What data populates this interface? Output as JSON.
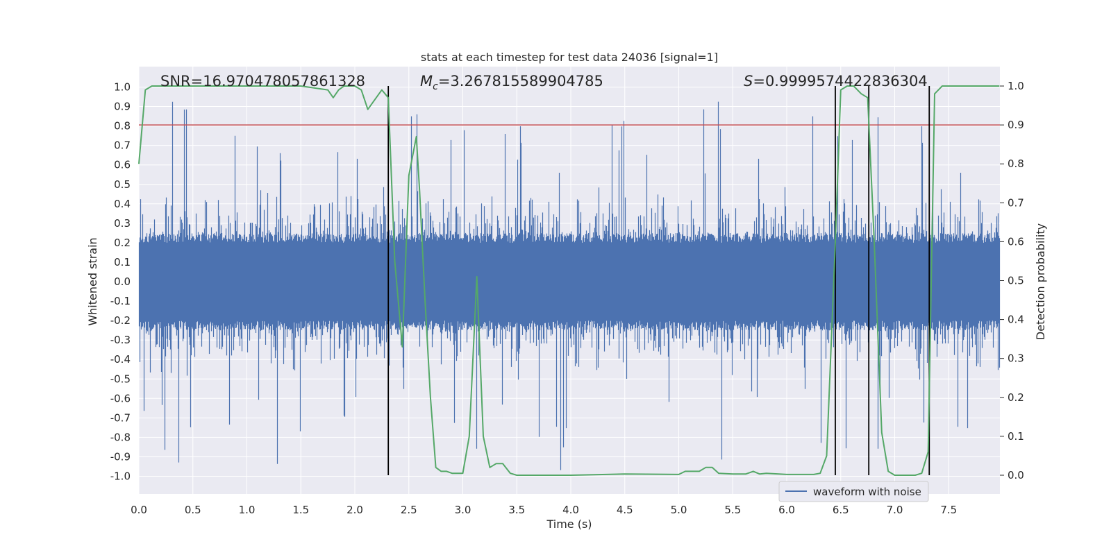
{
  "chart_data": {
    "type": "line",
    "title": "stats at each timestep for test data 24036 [signal=1]",
    "xlabel": "Time (s)",
    "ylabel": "Whitened strain",
    "y2label": "Detection probability",
    "xlim": [
      0.0,
      8.0
    ],
    "ylim": [
      -1.0,
      1.0
    ],
    "y2lim": [
      0.0,
      1.0
    ],
    "x_ticks": [
      "0.0",
      "0.5",
      "1.0",
      "1.5",
      "2.0",
      "2.5",
      "3.0",
      "3.5",
      "4.0",
      "4.5",
      "5.0",
      "5.5",
      "6.0",
      "6.5",
      "7.0",
      "7.5"
    ],
    "y_ticks": [
      "1.0",
      "0.9",
      "0.8",
      "0.7",
      "0.6",
      "0.5",
      "0.4",
      "0.3",
      "0.2",
      "0.1",
      "0.0",
      "-0.1",
      "-0.2",
      "-0.3",
      "-0.4",
      "-0.5",
      "-0.6",
      "-0.7",
      "-0.8",
      "-0.9",
      "-1.0"
    ],
    "y2_ticks": [
      "1.0",
      "0.9",
      "0.8",
      "0.7",
      "0.6",
      "0.5",
      "0.4",
      "0.3",
      "0.2",
      "0.1",
      "0.0"
    ],
    "annotations": {
      "snr_text": "SNR=16.970478057861328",
      "mc_symbol": "M",
      "mc_sub": "c",
      "mc_value": "=3.267815589904785",
      "s_symbol": "S",
      "s_value": "=0.9999574422836304"
    },
    "legend": {
      "label": "waveform with noise",
      "position": "lower-right"
    },
    "threshold": {
      "value": 0.9,
      "axis": "y2",
      "color": "#c44e52"
    },
    "vertical_lines": [
      2.31,
      6.45,
      6.76,
      7.32
    ],
    "detection_probability": {
      "x": [
        0.0,
        0.06,
        0.12,
        0.5,
        1.0,
        1.5,
        1.75,
        1.8,
        1.85,
        1.9,
        2.0,
        2.06,
        2.12,
        2.25,
        2.31,
        2.37,
        2.44,
        2.5,
        2.57,
        2.6,
        2.65,
        2.7,
        2.75,
        2.8,
        2.85,
        2.9,
        3.0,
        3.06,
        3.13,
        3.19,
        3.25,
        3.31,
        3.37,
        3.44,
        3.5,
        3.75,
        4.0,
        4.5,
        5.0,
        5.06,
        5.19,
        5.25,
        5.31,
        5.37,
        5.5,
        5.62,
        5.69,
        5.75,
        5.81,
        6.0,
        6.25,
        6.31,
        6.37,
        6.45,
        6.5,
        6.56,
        6.62,
        6.69,
        6.75,
        6.81,
        6.88,
        6.94,
        7.0,
        7.06,
        7.12,
        7.19,
        7.25,
        7.31,
        7.37,
        7.44,
        7.5,
        7.75,
        7.97
      ],
      "y": [
        0.8,
        0.99,
        1.0,
        1.0,
        1.0,
        1.0,
        0.99,
        0.97,
        0.99,
        1.0,
        1.0,
        0.99,
        0.94,
        0.99,
        0.97,
        0.55,
        0.33,
        0.77,
        0.87,
        0.73,
        0.45,
        0.2,
        0.02,
        0.01,
        0.01,
        0.005,
        0.005,
        0.1,
        0.51,
        0.1,
        0.02,
        0.03,
        0.03,
        0.005,
        0.0,
        0.0,
        0.0,
        0.003,
        0.002,
        0.01,
        0.01,
        0.02,
        0.02,
        0.005,
        0.003,
        0.003,
        0.01,
        0.003,
        0.005,
        0.002,
        0.002,
        0.005,
        0.05,
        0.6,
        0.99,
        1.0,
        1.0,
        0.98,
        0.97,
        0.6,
        0.11,
        0.01,
        0.0,
        0.0,
        0.0,
        0.0,
        0.005,
        0.06,
        0.98,
        1.0,
        1.0,
        1.0,
        1.0
      ]
    },
    "waveform_with_noise": {
      "samples": 4096,
      "sample_rate_hz": 512,
      "core_band": [
        -0.2,
        0.2
      ],
      "typical_range": [
        -0.5,
        0.55
      ],
      "extreme_range": [
        -0.98,
        0.97
      ],
      "note": "dense noisy strain signal spanning the full time axis"
    },
    "colors": {
      "waveform": "#4c72b0",
      "probability": "#55a868",
      "threshold": "#c44e52",
      "vlines": "#000000",
      "axes_bg": "#eaeaf2",
      "grid": "#ffffff"
    }
  }
}
